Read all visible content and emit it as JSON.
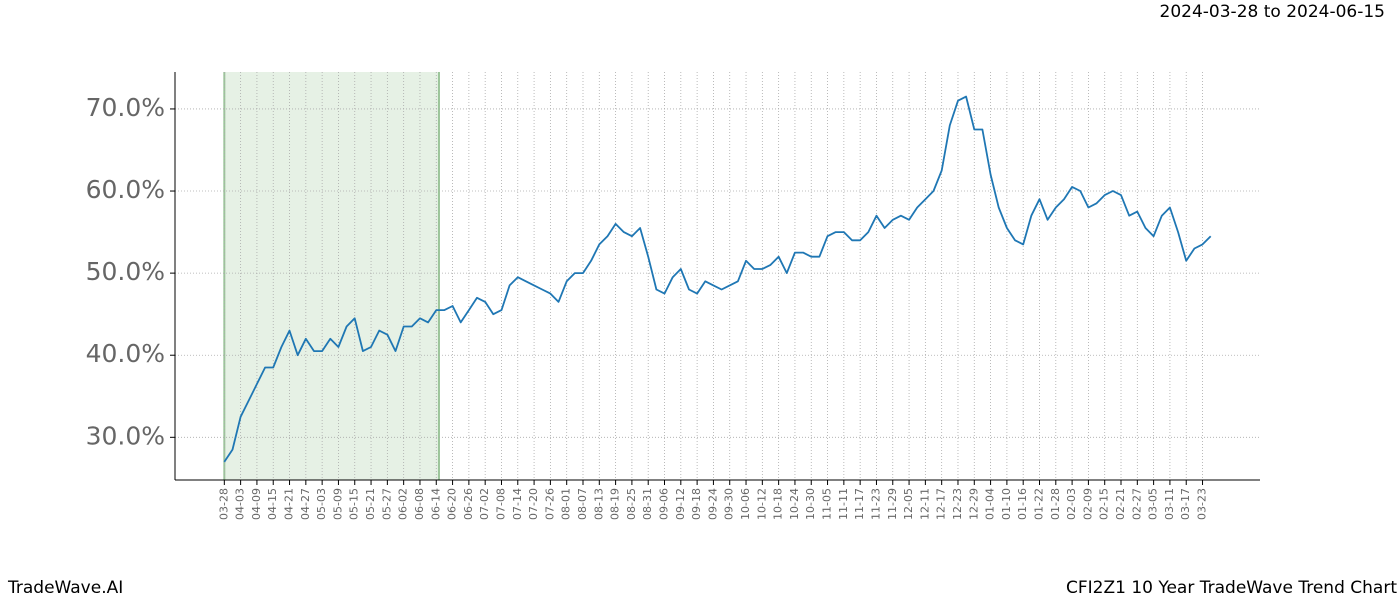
{
  "chart_data": {
    "type": "line",
    "title": "2024-03-28 to 2024-06-15",
    "footer_left": "TradeWave.AI",
    "footer_right": "CFI2Z1 10 Year TradeWave Trend Chart",
    "highlight": {
      "start": "03-28",
      "end": "06-15",
      "color": "#d5e8d4"
    },
    "x": [
      "03-28",
      "03-31",
      "04-03",
      "04-06",
      "04-09",
      "04-12",
      "04-15",
      "04-18",
      "04-21",
      "04-24",
      "04-27",
      "04-30",
      "05-03",
      "05-06",
      "05-09",
      "05-12",
      "05-15",
      "05-18",
      "05-21",
      "05-24",
      "05-27",
      "05-30",
      "06-02",
      "06-05",
      "06-08",
      "06-11",
      "06-14",
      "06-17",
      "06-20",
      "06-23",
      "06-26",
      "06-29",
      "07-02",
      "07-05",
      "07-08",
      "07-11",
      "07-14",
      "07-17",
      "07-20",
      "07-23",
      "07-26",
      "07-29",
      "08-01",
      "08-04",
      "08-07",
      "08-10",
      "08-13",
      "08-16",
      "08-19",
      "08-22",
      "08-25",
      "08-28",
      "08-31",
      "09-03",
      "09-06",
      "09-09",
      "09-12",
      "09-15",
      "09-18",
      "09-21",
      "09-24",
      "09-27",
      "09-30",
      "10-03",
      "10-06",
      "10-09",
      "10-12",
      "10-15",
      "10-18",
      "10-21",
      "10-24",
      "10-27",
      "10-30",
      "11-02",
      "11-05",
      "11-08",
      "11-11",
      "11-14",
      "11-17",
      "11-20",
      "11-23",
      "11-26",
      "11-29",
      "12-02",
      "12-05",
      "12-08",
      "12-11",
      "12-14",
      "12-17",
      "12-20",
      "12-23",
      "12-26",
      "12-29",
      "01-01",
      "01-04",
      "01-07",
      "01-10",
      "01-13",
      "01-16",
      "01-19",
      "01-22",
      "01-25",
      "01-28",
      "01-31",
      "02-03",
      "02-06",
      "02-09",
      "02-12",
      "02-15",
      "02-18",
      "02-21",
      "02-24",
      "02-27",
      "03-02",
      "03-05",
      "03-08",
      "03-11",
      "03-14",
      "03-17",
      "03-20",
      "03-23",
      "03-26"
    ],
    "series": [
      {
        "name": "CFI2Z1",
        "color": "#1f77b4",
        "values": [
          27.0,
          28.5,
          32.5,
          34.5,
          36.5,
          38.5,
          38.5,
          41,
          43,
          40,
          42,
          40.5,
          40.5,
          42,
          41,
          43.5,
          44.5,
          40.5,
          41,
          43,
          42.5,
          40.5,
          43.5,
          43.5,
          44.5,
          44,
          45.5,
          45.5,
          46,
          44,
          45.5,
          47,
          46.5,
          45,
          45.5,
          48.5,
          49.5,
          49,
          48.5,
          48,
          47.5,
          46.5,
          49,
          50,
          50,
          51.5,
          53.5,
          54.5,
          56,
          55,
          54.5,
          55.5,
          52,
          48,
          47.5,
          49.5,
          50.5,
          48,
          47.5,
          49,
          48.5,
          48,
          48.5,
          49,
          51.5,
          50.5,
          50.5,
          51,
          52,
          50,
          52.5,
          52.5,
          52,
          52,
          54.5,
          55,
          55,
          54,
          54,
          55,
          57,
          55.5,
          56.5,
          57,
          56.5,
          58,
          59,
          60,
          62.5,
          68,
          71,
          71.5,
          67.5,
          67.5,
          62,
          58,
          55.5,
          54,
          53.5,
          57,
          59,
          56.5,
          58,
          59,
          60.5,
          60,
          58,
          58.5,
          59.5,
          60,
          59.5,
          57,
          57.5,
          55.5,
          54.5,
          57,
          58,
          55,
          51.5,
          53,
          53.5,
          54.5
        ]
      }
    ],
    "xticks": [
      "03-28",
      "04-03",
      "04-09",
      "04-15",
      "04-21",
      "04-27",
      "05-03",
      "05-09",
      "05-15",
      "05-21",
      "05-27",
      "06-02",
      "06-08",
      "06-14",
      "06-20",
      "06-26",
      "07-02",
      "07-08",
      "07-14",
      "07-20",
      "07-26",
      "08-01",
      "08-07",
      "08-13",
      "08-19",
      "08-25",
      "08-31",
      "09-06",
      "09-12",
      "09-18",
      "09-24",
      "09-30",
      "10-06",
      "10-12",
      "10-18",
      "10-24",
      "10-30",
      "11-05",
      "11-11",
      "11-17",
      "11-23",
      "11-29",
      "12-05",
      "12-11",
      "12-17",
      "12-23",
      "12-29",
      "01-04",
      "01-10",
      "01-16",
      "01-22",
      "01-28",
      "02-03",
      "02-09",
      "02-15",
      "02-21",
      "02-27",
      "03-05",
      "03-11",
      "03-17",
      "03-23"
    ],
    "ylim": [
      24.8,
      74.5
    ],
    "yticks": [
      {
        "value": 30,
        "label": "30.0%"
      },
      {
        "value": 40,
        "label": "40.0%"
      },
      {
        "value": 50,
        "label": "50.0%"
      },
      {
        "value": 60,
        "label": "60.0%"
      },
      {
        "value": 70,
        "label": "70.0%"
      }
    ],
    "grid": true
  }
}
